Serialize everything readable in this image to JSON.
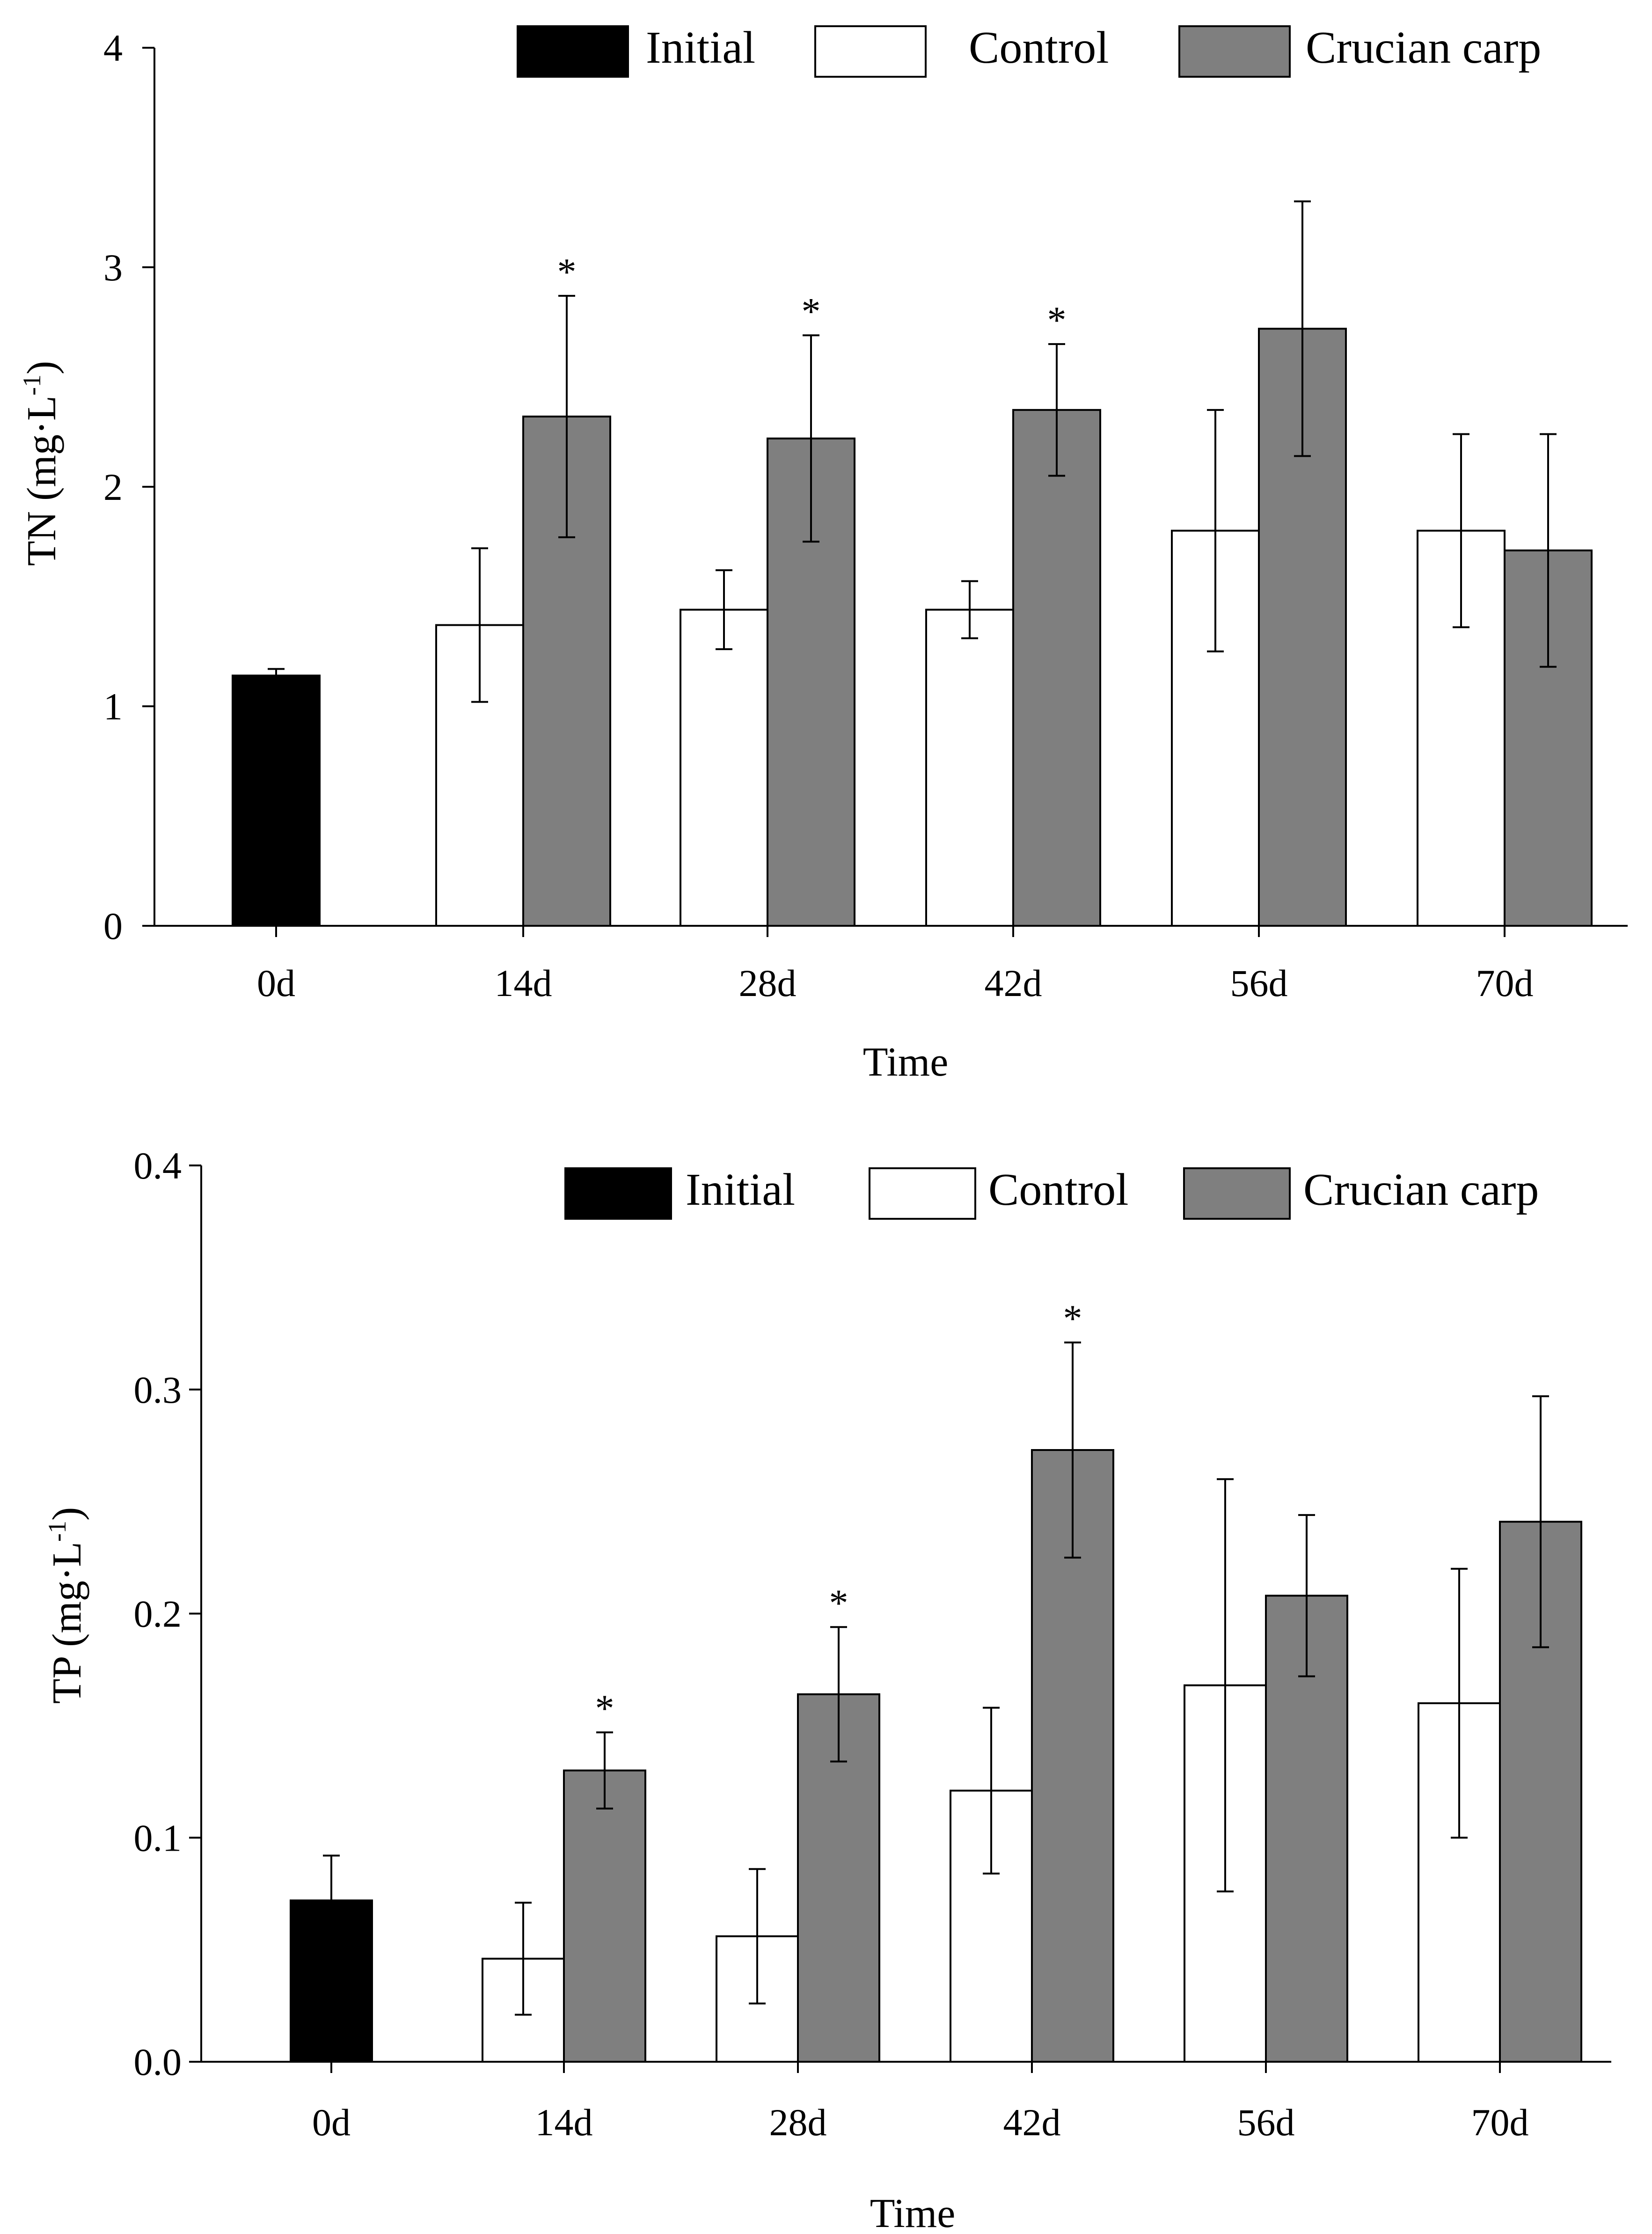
{
  "colors": {
    "Initial": "#000000",
    "Control": "#ffffff",
    "Crucian carp": "#7f7f7f",
    "stroke": "#000000"
  },
  "chart_data": [
    {
      "id": "tn",
      "type": "bar",
      "title": "",
      "xlabel": "Time",
      "ylabel_main": "TN (mg",
      "ylabel_dot": "·",
      "ylabel_unit": "L",
      "ylabel_exp": "-1",
      "ylabel_close": ")",
      "ylim": [
        0,
        4
      ],
      "yticks": [
        0,
        1,
        2,
        3,
        4
      ],
      "ytick_labels": [
        "0",
        "1",
        "2",
        "3",
        "4"
      ],
      "categories": [
        "0d",
        "14d",
        "28d",
        "42d",
        "56d",
        "70d"
      ],
      "legend": {
        "position": "top-right",
        "entries": [
          "Initial",
          "Control",
          "Crucian carp"
        ]
      },
      "series": [
        {
          "name": "Initial",
          "values": [
            1.14,
            null,
            null,
            null,
            null,
            null
          ],
          "errors": [
            0.03,
            null,
            null,
            null,
            null,
            null
          ]
        },
        {
          "name": "Control",
          "values": [
            null,
            1.37,
            1.44,
            1.44,
            1.8,
            1.8
          ],
          "errors": [
            null,
            0.35,
            0.18,
            0.13,
            0.55,
            0.44
          ]
        },
        {
          "name": "Crucian carp",
          "values": [
            null,
            2.32,
            2.22,
            2.35,
            2.72,
            1.71
          ],
          "errors": [
            null,
            0.55,
            0.47,
            0.3,
            0.58,
            0.53
          ]
        }
      ],
      "significance": [
        {
          "category": "14d",
          "series": "Crucian carp",
          "label": "*"
        },
        {
          "category": "28d",
          "series": "Crucian carp",
          "label": "*"
        },
        {
          "category": "42d",
          "series": "Crucian carp",
          "label": "*"
        }
      ]
    },
    {
      "id": "tp",
      "type": "bar",
      "title": "",
      "xlabel": "Time",
      "ylabel_main": "TP (mg",
      "ylabel_dot": "·",
      "ylabel_unit": "L",
      "ylabel_exp": "-1",
      "ylabel_close": ")",
      "ylim": [
        0,
        0.4
      ],
      "yticks": [
        0,
        0.1,
        0.2,
        0.3,
        0.4
      ],
      "ytick_labels": [
        "0.0",
        "0.1",
        "0.2",
        "0.3",
        "0.4"
      ],
      "categories": [
        "0d",
        "14d",
        "28d",
        "42d",
        "56d",
        "70d"
      ],
      "legend": {
        "position": "top-right",
        "entries": [
          "Initial",
          "Control",
          "Crucian carp"
        ]
      },
      "series": [
        {
          "name": "Initial",
          "values": [
            0.072,
            null,
            null,
            null,
            null,
            null
          ],
          "errors": [
            0.02,
            null,
            null,
            null,
            null,
            null
          ]
        },
        {
          "name": "Control",
          "values": [
            null,
            0.046,
            0.056,
            0.121,
            0.168,
            0.16
          ],
          "errors": [
            null,
            0.025,
            0.03,
            0.037,
            0.092,
            0.06
          ]
        },
        {
          "name": "Crucian carp",
          "values": [
            null,
            0.13,
            0.164,
            0.273,
            0.208,
            0.241
          ],
          "errors": [
            null,
            0.017,
            0.03,
            0.048,
            0.036,
            0.056
          ]
        }
      ],
      "significance": [
        {
          "category": "14d",
          "series": "Crucian carp",
          "label": "*"
        },
        {
          "category": "28d",
          "series": "Crucian carp",
          "label": "*"
        },
        {
          "category": "42d",
          "series": "Crucian carp",
          "label": "*"
        }
      ]
    }
  ]
}
